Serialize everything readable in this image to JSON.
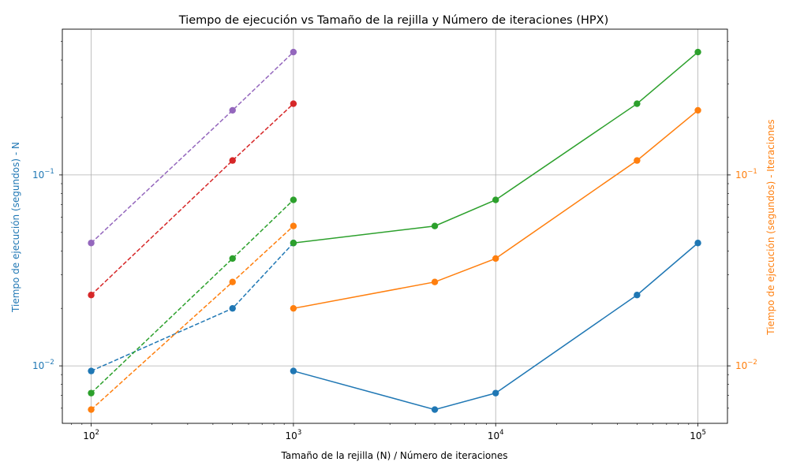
{
  "chart_data": {
    "type": "line",
    "title": "Tiempo de ejecución vs Tamaño de la rejilla y Número de iteraciones (HPX)",
    "xlabel": "Tamaño de la rejilla (N) / Número de iteraciones",
    "ylabel_left": "Tiempo de ejecución (segundos) - N",
    "ylabel_right": "Tiempo de ejecución (segundos) - Iteraciones",
    "left_axis_color": "#1f77b4",
    "right_axis_color": "#ff7f0e",
    "xscale": "log",
    "yscale": "log",
    "xlim": [
      72,
      140000
    ],
    "ylim": [
      0.005,
      0.58
    ],
    "grid": true,
    "x_ticks": [
      {
        "value": 100,
        "base": "10",
        "exp": "2"
      },
      {
        "value": 1000,
        "base": "10",
        "exp": "3"
      },
      {
        "value": 10000,
        "base": "10",
        "exp": "4"
      },
      {
        "value": 100000,
        "base": "10",
        "exp": "5"
      }
    ],
    "y_ticks": [
      {
        "value": 0.01,
        "base": "10",
        "exp": "−2"
      },
      {
        "value": 0.1,
        "base": "10",
        "exp": "−1"
      }
    ],
    "series": [
      {
        "axis": "left",
        "style": "dashed",
        "color": "#1f77b4",
        "x": [
          100,
          500,
          1000
        ],
        "y": [
          0.0094,
          0.02,
          0.044
        ]
      },
      {
        "axis": "left",
        "style": "dashed",
        "color": "#ff7f0e",
        "x": [
          100,
          500,
          1000
        ],
        "y": [
          0.0059,
          0.0275,
          0.054
        ]
      },
      {
        "axis": "left",
        "style": "dashed",
        "color": "#2ca02c",
        "x": [
          100,
          500,
          1000
        ],
        "y": [
          0.0072,
          0.0365,
          0.074
        ]
      },
      {
        "axis": "left",
        "style": "dashed",
        "color": "#d62728",
        "x": [
          100,
          500,
          1000
        ],
        "y": [
          0.0235,
          0.119,
          0.236
        ]
      },
      {
        "axis": "left",
        "style": "dashed",
        "color": "#9467bd",
        "x": [
          100,
          500,
          1000
        ],
        "y": [
          0.044,
          0.218,
          0.44
        ]
      },
      {
        "axis": "right",
        "style": "solid",
        "color": "#1f77b4",
        "x": [
          1000,
          5000,
          10000,
          50000,
          100000
        ],
        "y": [
          0.0094,
          0.0059,
          0.0072,
          0.0235,
          0.044
        ]
      },
      {
        "axis": "right",
        "style": "solid",
        "color": "#ff7f0e",
        "x": [
          1000,
          5000,
          10000,
          50000,
          100000
        ],
        "y": [
          0.02,
          0.0275,
          0.0365,
          0.119,
          0.218
        ]
      },
      {
        "axis": "right",
        "style": "solid",
        "color": "#2ca02c",
        "x": [
          1000,
          5000,
          10000,
          50000,
          100000
        ],
        "y": [
          0.044,
          0.054,
          0.074,
          0.236,
          0.44
        ]
      }
    ]
  }
}
